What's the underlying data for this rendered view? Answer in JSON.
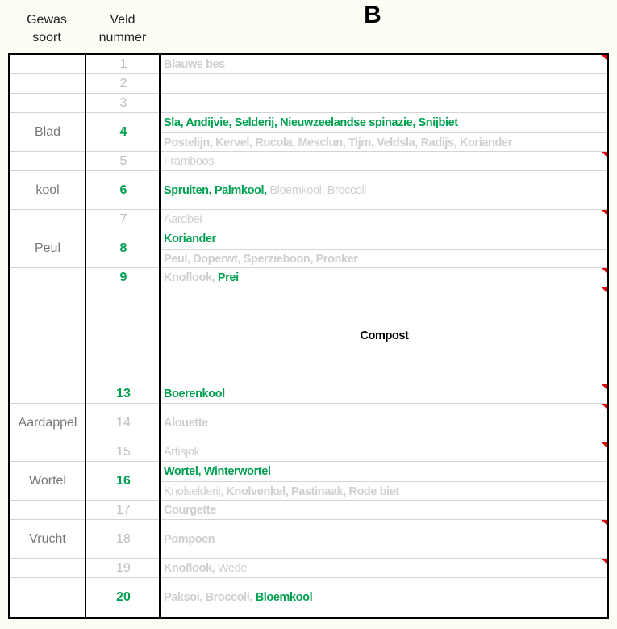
{
  "header": {
    "gewas_soort": "Gewas soort",
    "gewas_line1": "Gewas",
    "gewas_line2": "soort",
    "veld_line1": "Veld",
    "veld_line2": "nummer",
    "section": "B"
  },
  "colors": {
    "green": "#00a050",
    "grey": "#d4d4d4",
    "comment_marker": "#e00000"
  },
  "rows": [
    {
      "gewas": "",
      "veld": "1",
      "highlight": false,
      "comment": true,
      "lines": [
        [
          {
            "t": "Blauwe bes",
            "s": "b"
          }
        ]
      ]
    },
    {
      "gewas": "",
      "veld": "2",
      "highlight": false,
      "comment": false,
      "lines": [
        []
      ]
    },
    {
      "gewas": "",
      "veld": "3",
      "highlight": false,
      "comment": false,
      "lines": [
        []
      ]
    },
    {
      "gewas": "Blad",
      "veld": "4",
      "highlight": true,
      "comment": false,
      "lines": [
        [
          {
            "t": "Sla, Andijvie, Selderij, Nieuwzeelandse spinazie, Snijbiet",
            "s": "g"
          }
        ],
        [
          {
            "t": "Postelijn, Kervel, Rucola, Mesclun, Tijm, Veldsla, Radijs, Koriander",
            "s": "b"
          }
        ]
      ]
    },
    {
      "gewas": "",
      "veld": "5",
      "highlight": false,
      "comment": true,
      "lines": [
        [
          {
            "t": "Framboos",
            "s": "n"
          }
        ]
      ]
    },
    {
      "gewas": "kool",
      "veld": "6",
      "highlight": true,
      "comment": false,
      "lines": [
        [
          {
            "t": "Spruiten, Palmkool,",
            "s": "g"
          },
          {
            "t": " Bloemkool, Broccoli",
            "s": "n"
          }
        ]
      ]
    },
    {
      "gewas": "",
      "veld": "7",
      "highlight": false,
      "comment": true,
      "lines": [
        [
          {
            "t": "Aardbei",
            "s": "n"
          }
        ]
      ]
    },
    {
      "gewas": "Peul",
      "veld": "8",
      "highlight": true,
      "comment": false,
      "lines": [
        [
          {
            "t": "Koriander",
            "s": "g"
          }
        ],
        [
          {
            "t": "Peul, Doperwt, Sperzieboon, Pronker",
            "s": "b"
          }
        ]
      ]
    },
    {
      "gewas": "",
      "veld": "9",
      "highlight": true,
      "comment": true,
      "lines": [
        [
          {
            "t": "Knoflook,",
            "s": "b"
          },
          {
            "t": " Prei",
            "s": "g"
          }
        ]
      ]
    },
    {
      "gewas": "",
      "veld": "",
      "highlight": false,
      "comment": true,
      "center": true,
      "lines": [
        [
          {
            "t": "Compost",
            "s": "k"
          }
        ]
      ]
    },
    {
      "gewas": "",
      "veld": "13",
      "highlight": true,
      "comment": true,
      "lines": [
        [
          {
            "t": "Boerenkool",
            "s": "g"
          }
        ]
      ]
    },
    {
      "gewas": "Aardappel",
      "veld": "14",
      "highlight": false,
      "comment": true,
      "lines": [
        [
          {
            "t": "Alouette",
            "s": "b"
          }
        ]
      ]
    },
    {
      "gewas": "",
      "veld": "15",
      "highlight": false,
      "comment": true,
      "lines": [
        [
          {
            "t": "Artisjok",
            "s": "n"
          }
        ]
      ]
    },
    {
      "gewas": "Wortel",
      "veld": "16",
      "highlight": true,
      "comment": false,
      "lines": [
        [
          {
            "t": "Wortel, Winterwortel",
            "s": "g"
          }
        ],
        [
          {
            "t": "Knolselderij,",
            "s": "n"
          },
          {
            "t": " Knolvenkel, Pastinaak, Rode biet",
            "s": "b"
          }
        ]
      ]
    },
    {
      "gewas": "",
      "veld": "17",
      "highlight": false,
      "comment": false,
      "lines": [
        [
          {
            "t": "Courgette",
            "s": "b"
          }
        ]
      ]
    },
    {
      "gewas": "Vrucht",
      "veld": "18",
      "highlight": false,
      "comment": true,
      "lines": [
        [
          {
            "t": "Pompoen",
            "s": "b"
          }
        ]
      ]
    },
    {
      "gewas": "",
      "veld": "19",
      "highlight": false,
      "comment": true,
      "lines": [
        [
          {
            "t": "Knoflook,",
            "s": "b"
          },
          {
            "t": " Wede",
            "s": "n"
          }
        ]
      ]
    },
    {
      "gewas": "",
      "veld": "20",
      "highlight": true,
      "comment": false,
      "lines": [
        [
          {
            "t": "Paksoi, Broccoli,",
            "s": "b"
          },
          {
            "t": " Bloemkool",
            "s": "g"
          }
        ]
      ]
    }
  ]
}
